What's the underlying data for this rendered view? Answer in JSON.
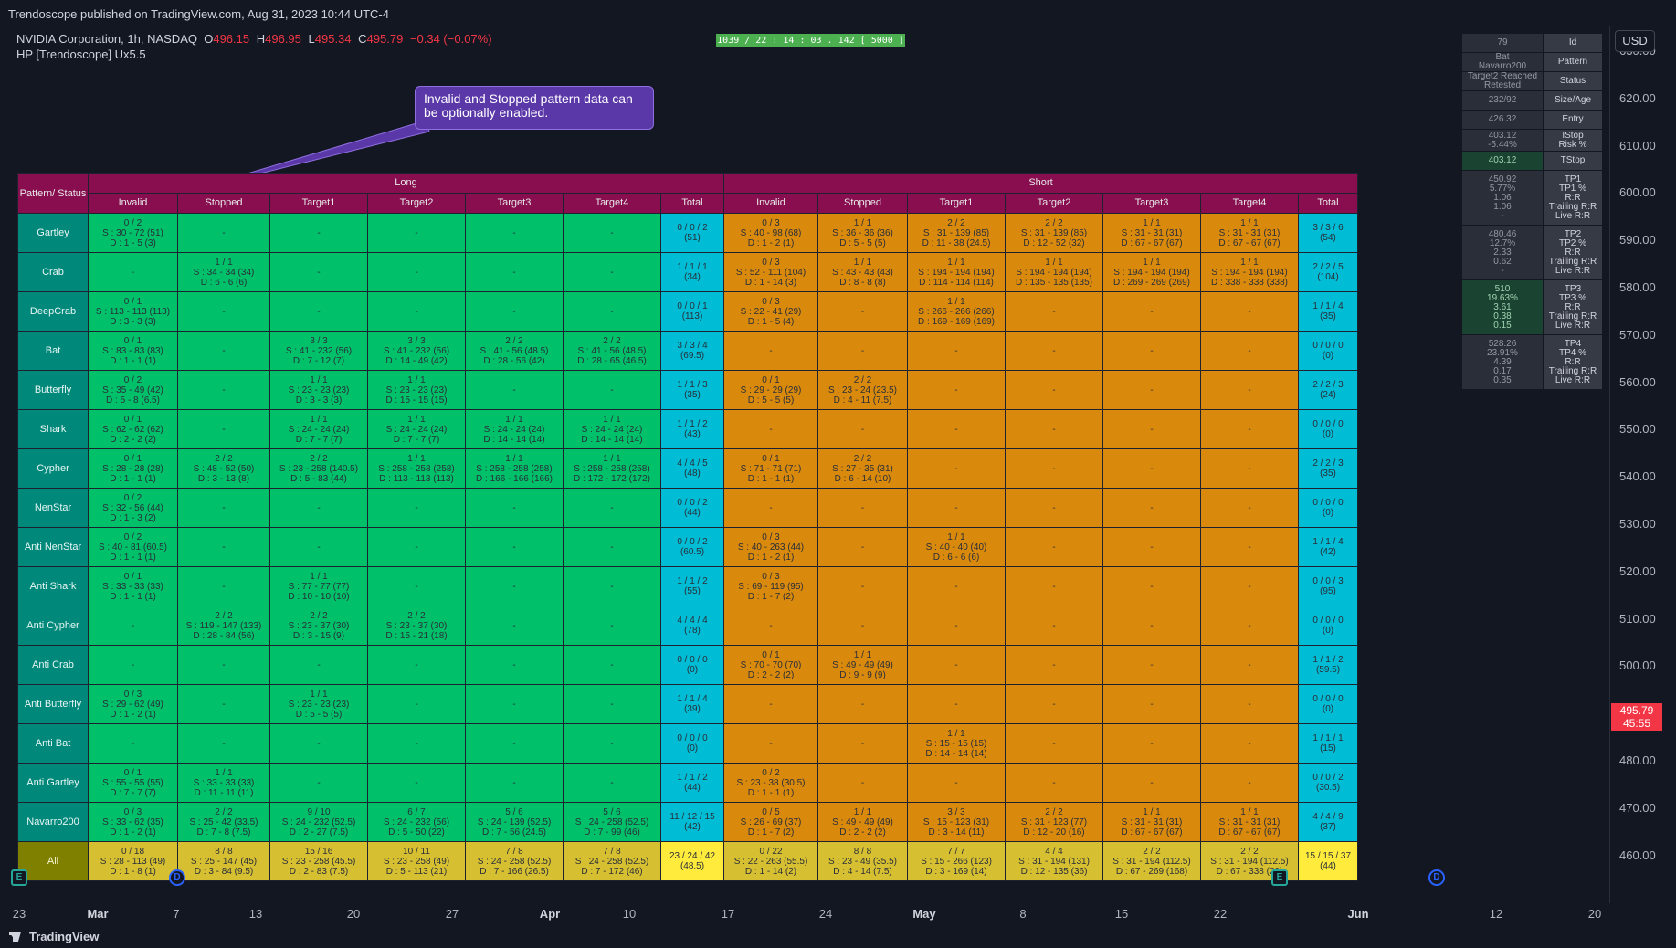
{
  "header": {
    "published": "Trendoscope published on TradingView.com, Aug 31, 2023 10:44 UTC-4"
  },
  "symbol": {
    "name": "NVIDIA Corporation, 1h, NASDAQ",
    "open_label": "O",
    "open": "496.15",
    "high_label": "H",
    "high": "496.95",
    "low_label": "L",
    "low": "495.34",
    "close_label": "C",
    "close": "495.79",
    "change": "−0.34 (−0.07%)",
    "indicator": "HP [Trendoscope] Ux5.5"
  },
  "timer": "1039 / 22 : 14 : 03 . 142 [ 5000 ]",
  "callout": "Invalid and Stopped pattern data can be optionally enabled.",
  "currency": "USD",
  "last_price": {
    "price": "495.79",
    "countdown": "45:55"
  },
  "price_ticks": [
    "630.00",
    "620.00",
    "610.00",
    "600.00",
    "590.00",
    "580.00",
    "570.00",
    "560.00",
    "550.00",
    "540.00",
    "530.00",
    "520.00",
    "510.00",
    "500.00",
    "490.00",
    "480.00",
    "470.00",
    "460.00"
  ],
  "time_ticks": [
    {
      "label": "23",
      "major": false
    },
    {
      "label": "Mar",
      "major": true
    },
    {
      "label": "7",
      "major": false
    },
    {
      "label": "13",
      "major": false
    },
    {
      "label": "20",
      "major": false
    },
    {
      "label": "27",
      "major": false
    },
    {
      "label": "Apr",
      "major": true
    },
    {
      "label": "10",
      "major": false
    },
    {
      "label": "17",
      "major": false
    },
    {
      "label": "24",
      "major": false
    },
    {
      "label": "May",
      "major": true
    },
    {
      "label": "8",
      "major": false
    },
    {
      "label": "15",
      "major": false
    },
    {
      "label": "22",
      "major": false
    },
    {
      "label": "Jun",
      "major": true
    },
    {
      "label": "12",
      "major": false
    },
    {
      "label": "20",
      "major": false
    }
  ],
  "markers": [
    {
      "kind": "e",
      "letter": "E"
    },
    {
      "kind": "d",
      "letter": "D"
    },
    {
      "kind": "e",
      "letter": "E"
    },
    {
      "kind": "d",
      "letter": "D"
    }
  ],
  "brand": "TradingView",
  "table": {
    "corner": "Pattern/ Status",
    "long": "Long",
    "short": "Short",
    "subheaders": [
      "Invalid",
      "Stopped",
      "Target1",
      "Target2",
      "Target3",
      "Target4",
      "Total",
      "Invalid",
      "Stopped",
      "Target1",
      "Target2",
      "Target3",
      "Target4",
      "Total"
    ],
    "rows": [
      {
        "name": "Gartley",
        "cells": [
          "0 / 2|S : 30 - 72 (51)|D : 1 - 5 (3)",
          "-",
          "-",
          "-",
          "-",
          "-",
          "0 / 0 / 2|(51)",
          "0 / 3|S : 40 - 98 (68)|D : 1 - 2 (1)",
          "1 / 1|S : 36 - 36 (36)|D : 5 - 5 (5)",
          "2 / 2|S : 31 - 139 (85)|D : 11 - 38 (24.5)",
          "2 / 2|S : 31 - 139 (85)|D : 12 - 52 (32)",
          "1 / 1|S : 31 - 31 (31)|D : 67 - 67 (67)",
          "1 / 1|S : 31 - 31 (31)|D : 67 - 67 (67)",
          "3 / 3 / 6|(54)"
        ]
      },
      {
        "name": "Crab",
        "cells": [
          "-",
          "1 / 1|S : 34 - 34 (34)|D : 6 - 6 (6)",
          "-",
          "-",
          "-",
          "-",
          "1 / 1 / 1|(34)",
          "0 / 3|S : 52 - 111 (104)|D : 1 - 14 (3)",
          "1 / 1|S : 43 - 43 (43)|D : 8 - 8 (8)",
          "1 / 1|S : 194 - 194 (194)|D : 114 - 114 (114)",
          "1 / 1|S : 194 - 194 (194)|D : 135 - 135 (135)",
          "1 / 1|S : 194 - 194 (194)|D : 269 - 269 (269)",
          "1 / 1|S : 194 - 194 (194)|D : 338 - 338 (338)",
          "2 / 2 / 5|(104)"
        ]
      },
      {
        "name": "DeepCrab",
        "cells": [
          "0 / 1|S : 113 - 113 (113)|D : 3 - 3 (3)",
          "-",
          "-",
          "-",
          "-",
          "-",
          "0 / 0 / 1|(113)",
          "0 / 3|S : 22 - 41 (29)|D : 1 - 5 (4)",
          "-",
          "1 / 1|S : 266 - 266 (266)|D : 169 - 169 (169)",
          "-",
          "-",
          "-",
          "1 / 1 / 4|(35)"
        ]
      },
      {
        "name": "Bat",
        "cells": [
          "0 / 1|S : 83 - 83 (83)|D : 1 - 1 (1)",
          "-",
          "3 / 3|S : 41 - 232 (56)|D : 7 - 12 (7)",
          "3 / 3|S : 41 - 232 (56)|D : 14 - 49 (42)",
          "2 / 2|S : 41 - 56 (48.5)|D : 28 - 56 (42)",
          "2 / 2|S : 41 - 56 (48.5)|D : 28 - 65 (46.5)",
          "3 / 3 / 4|(69.5)",
          "-",
          "-",
          "-",
          "-",
          "-",
          "-",
          "0 / 0 / 0|(0)"
        ]
      },
      {
        "name": "Butterfly",
        "cells": [
          "0 / 2|S : 35 - 49 (42)|D : 5 - 8 (6.5)",
          "-",
          "1 / 1|S : 23 - 23 (23)|D : 3 - 3 (3)",
          "1 / 1|S : 23 - 23 (23)|D : 15 - 15 (15)",
          "-",
          "-",
          "1 / 1 / 3|(35)",
          "0 / 1|S : 29 - 29 (29)|D : 5 - 5 (5)",
          "2 / 2|S : 23 - 24 (23.5)|D : 4 - 11 (7.5)",
          "-",
          "-",
          "-",
          "-",
          "2 / 2 / 3|(24)"
        ]
      },
      {
        "name": "Shark",
        "cells": [
          "0 / 1|S : 62 - 62 (62)|D : 2 - 2 (2)",
          "-",
          "1 / 1|S : 24 - 24 (24)|D : 7 - 7 (7)",
          "1 / 1|S : 24 - 24 (24)|D : 7 - 7 (7)",
          "1 / 1|S : 24 - 24 (24)|D : 14 - 14 (14)",
          "1 / 1|S : 24 - 24 (24)|D : 14 - 14 (14)",
          "1 / 1 / 2|(43)",
          "-",
          "-",
          "-",
          "-",
          "-",
          "-",
          "0 / 0 / 0|(0)"
        ]
      },
      {
        "name": "Cypher",
        "cells": [
          "0 / 1|S : 28 - 28 (28)|D : 1 - 1 (1)",
          "2 / 2|S : 48 - 52 (50)|D : 3 - 13 (8)",
          "2 / 2|S : 23 - 258 (140.5)|D : 5 - 83 (44)",
          "1 / 1|S : 258 - 258 (258)|D : 113 - 113 (113)",
          "1 / 1|S : 258 - 258 (258)|D : 166 - 166 (166)",
          "1 / 1|S : 258 - 258 (258)|D : 172 - 172 (172)",
          "4 / 4 / 5|(48)",
          "0 / 1|S : 71 - 71 (71)|D : 1 - 1 (1)",
          "2 / 2|S : 27 - 35 (31)|D : 6 - 14 (10)",
          "-",
          "-",
          "-",
          "-",
          "2 / 2 / 3|(35)"
        ]
      },
      {
        "name": "NenStar",
        "cells": [
          "0 / 2|S : 32 - 56 (44)|D : 1 - 3 (2)",
          "-",
          "-",
          "-",
          "-",
          "-",
          "0 / 0 / 2|(44)",
          "-",
          "-",
          "-",
          "-",
          "-",
          "-",
          "0 / 0 / 0|(0)"
        ]
      },
      {
        "name": "Anti NenStar",
        "cells": [
          "0 / 2|S : 40 - 81 (60.5)|D : 1 - 1 (1)",
          "-",
          "-",
          "-",
          "-",
          "-",
          "0 / 0 / 2|(60.5)",
          "0 / 3|S : 40 - 263 (44)|D : 1 - 2 (1)",
          "-",
          "1 / 1|S : 40 - 40 (40)|D : 6 - 6 (6)",
          "-",
          "-",
          "-",
          "1 / 1 / 4|(42)"
        ]
      },
      {
        "name": "Anti Shark",
        "cells": [
          "0 / 1|S : 33 - 33 (33)|D : 1 - 1 (1)",
          "-",
          "1 / 1|S : 77 - 77 (77)|D : 10 - 10 (10)",
          "-",
          "-",
          "-",
          "1 / 1 / 2|(55)",
          "0 / 3|S : 69 - 119 (95)|D : 1 - 7 (2)",
          "-",
          "-",
          "-",
          "-",
          "-",
          "0 / 0 / 3|(95)"
        ]
      },
      {
        "name": "Anti Cypher",
        "cells": [
          "-",
          "2 / 2|S : 119 - 147 (133)|D : 28 - 84 (56)",
          "2 / 2|S : 23 - 37 (30)|D : 3 - 15 (9)",
          "2 / 2|S : 23 - 37 (30)|D : 15 - 21 (18)",
          "-",
          "-",
          "4 / 4 / 4|(78)",
          "-",
          "-",
          "-",
          "-",
          "-",
          "-",
          "0 / 0 / 0|(0)"
        ]
      },
      {
        "name": "Anti Crab",
        "cells": [
          "-",
          "-",
          "-",
          "-",
          "-",
          "-",
          "0 / 0 / 0|(0)",
          "0 / 1|S : 70 - 70 (70)|D : 2 - 2 (2)",
          "1 / 1|S : 49 - 49 (49)|D : 9 - 9 (9)",
          "-",
          "-",
          "-",
          "-",
          "1 / 1 / 2|(59.5)"
        ]
      },
      {
        "name": "Anti Butterfly",
        "cells": [
          "0 / 3|S : 29 - 62 (49)|D : 1 - 2 (1)",
          "-",
          "1 / 1|S : 23 - 23 (23)|D : 5 - 5 (5)",
          "-",
          "-",
          "-",
          "1 / 1 / 4|(39)",
          "-",
          "-",
          "-",
          "-",
          "-",
          "-",
          "0 / 0 / 0|(0)"
        ]
      },
      {
        "name": "Anti Bat",
        "cells": [
          "-",
          "-",
          "-",
          "-",
          "-",
          "-",
          "0 / 0 / 0|(0)",
          "-",
          "-",
          "1 / 1|S : 15 - 15 (15)|D : 14 - 14 (14)",
          "-",
          "-",
          "-",
          "1 / 1 / 1|(15)"
        ]
      },
      {
        "name": "Anti Gartley",
        "cells": [
          "0 / 1|S : 55 - 55 (55)|D : 7 - 7 (7)",
          "1 / 1|S : 33 - 33 (33)|D : 11 - 11 (11)",
          "-",
          "-",
          "-",
          "-",
          "1 / 1 / 2|(44)",
          "0 / 2|S : 23 - 38 (30.5)|D : 1 - 1 (1)",
          "-",
          "-",
          "-",
          "-",
          "-",
          "0 / 0 / 2|(30.5)"
        ]
      },
      {
        "name": "Navarro200",
        "cells": [
          "0 / 3|S : 33 - 62 (35)|D : 1 - 2 (1)",
          "2 / 2|S : 25 - 42 (33.5)|D : 7 - 8 (7.5)",
          "9 / 10|S : 24 - 232 (52.5)|D : 2 - 27 (7.5)",
          "6 / 7|S : 24 - 232 (56)|D : 5 - 50 (22)",
          "5 / 6|S : 24 - 139 (52.5)|D : 7 - 56 (24.5)",
          "5 / 6|S : 24 - 258 (52.5)|D : 7 - 99 (46)",
          "11 / 12 / 15|(42)",
          "0 / 5|S : 26 - 69 (37)|D : 1 - 7 (2)",
          "1 / 1|S : 49 - 49 (49)|D : 2 - 2 (2)",
          "3 / 3|S : 15 - 123 (31)|D : 3 - 14 (11)",
          "2 / 2|S : 31 - 123 (77)|D : 12 - 20 (16)",
          "1 / 1|S : 31 - 31 (31)|D : 67 - 67 (67)",
          "1 / 1|S : 31 - 31 (31)|D : 67 - 67 (67)",
          "4 / 4 / 9|(37)"
        ]
      }
    ],
    "all_row": {
      "name": "All",
      "cells": [
        "0 / 18|S : 28 - 113 (49)|D : 1 - 8 (1)",
        "8 / 8|S : 25 - 147 (45)|D : 3 - 84 (9.5)",
        "15 / 16|S : 23 - 258 (45.5)|D : 2 - 83 (7.5)",
        "10 / 11|S : 23 - 258 (49)|D : 5 - 113 (21)",
        "7 / 8|S : 24 - 258 (52.5)|D : 7 - 166 (26.5)",
        "7 / 8|S : 24 - 258 (52.5)|D : 7 - 172 (46)",
        "23 / 24 / 42|(48.5)",
        "0 / 22|S : 22 - 263 (55.5)|D : 1 - 14 (2)",
        "8 / 8|S : 23 - 49 (35.5)|D : 4 - 14 (7.5)",
        "7 / 7|S : 15 - 266 (123)|D : 3 - 169 (14)",
        "4 / 4|S : 31 - 194 (131)|D : 12 - 135 (36)",
        "2 / 2|S : 31 - 194 (112.5)|D : 67 - 269 (168)",
        "2 / 2|S : 31 - 194 (112.5)|D : 67 - 338 (20)",
        "15 / 15 / 37|(44)"
      ]
    }
  },
  "side_table": [
    {
      "value": "79",
      "label": "Id",
      "green": false
    },
    {
      "value": "Bat|Navarro200",
      "label": "Pattern",
      "green": false
    },
    {
      "value": "Target2 Reached|Retested",
      "label": "Status",
      "green": false
    },
    {
      "value": "232/92",
      "label": "Size/Age",
      "green": false
    },
    {
      "value": "426.32",
      "label": "Entry",
      "green": false
    },
    {
      "value": "403.12|-5.44%",
      "label": "IStop|Risk %",
      "green": false
    },
    {
      "value": "403.12",
      "label": "TStop",
      "green": true
    },
    {
      "value": "450.92|5.77%|1.06|1.06|-",
      "label": "TP1|TP1 %|R:R|Trailing R:R|Live R:R",
      "green": false
    },
    {
      "value": "480.46|12.7%|2.33|0.62|-",
      "label": "TP2|TP2 %|R:R|Trailing R:R|Live R:R",
      "green": false
    },
    {
      "value": "510|19.63%|3.61|0.38|0.15",
      "label": "TP3|TP3 %|R:R|Trailing R:R|Live R:R",
      "green": true
    },
    {
      "value": "528.26|23.91%|4.39|0.17|0.35",
      "label": "TP4|TP4 %|R:R|Trailing R:R|Live R:R",
      "green": false
    }
  ]
}
